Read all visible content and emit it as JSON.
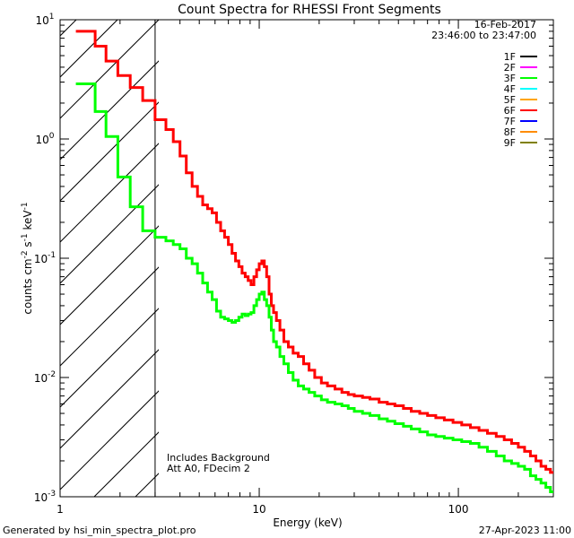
{
  "chart_data": {
    "type": "line",
    "title": "Count Spectra for RHESSI Front Segments",
    "xlabel": "Energy (keV)",
    "ylabel": "counts cm^-2 s^-1 keV^-1",
    "xscale": "log",
    "yscale": "log",
    "xlim": [
      1,
      300
    ],
    "ylim": [
      0.001,
      10
    ],
    "x_ticks": [
      {
        "value": 1,
        "label": "1"
      },
      {
        "value": 10,
        "label": "10"
      },
      {
        "value": 100,
        "label": "100"
      }
    ],
    "y_ticks": [
      {
        "value": 10,
        "mant": "10",
        "exp": "1"
      },
      {
        "value": 1,
        "mant": "10",
        "exp": "0"
      },
      {
        "value": 0.1,
        "mant": "10",
        "exp": "-1"
      },
      {
        "value": 0.01,
        "mant": "10",
        "exp": "-2"
      },
      {
        "value": 0.001,
        "mant": "10",
        "exp": "-3"
      }
    ],
    "date": "16-Feb-2017",
    "time_range": "23:46:00 to 23:47:00",
    "legend": [
      {
        "name": "1F",
        "color": "#000000"
      },
      {
        "name": "2F",
        "color": "#ff00ff"
      },
      {
        "name": "3F",
        "color": "#00ff00"
      },
      {
        "name": "4F",
        "color": "#00ffff"
      },
      {
        "name": "5F",
        "color": "#ffa500"
      },
      {
        "name": "6F",
        "color": "#ff0000"
      },
      {
        "name": "7F",
        "color": "#0000ff"
      },
      {
        "name": "8F",
        "color": "#ff8c00"
      },
      {
        "name": "9F",
        "color": "#808000"
      }
    ],
    "hatched_region_x": [
      1,
      3
    ],
    "annotations": [
      "Includes Background",
      "Att A0, FDecim 2"
    ],
    "series": [
      {
        "name": "6F",
        "color": "#ff0000",
        "x": [
          1.2,
          1.35,
          1.5,
          1.7,
          1.95,
          2.25,
          2.6,
          3.0,
          3.4,
          3.7,
          4.0,
          4.3,
          4.6,
          4.9,
          5.2,
          5.5,
          5.8,
          6.1,
          6.4,
          6.7,
          7.0,
          7.3,
          7.6,
          7.9,
          8.2,
          8.5,
          8.8,
          9.1,
          9.4,
          9.7,
          10.0,
          10.3,
          10.6,
          10.9,
          11.2,
          11.5,
          11.8,
          12.2,
          12.7,
          13.3,
          14.0,
          14.8,
          15.7,
          16.7,
          17.8,
          19.0,
          20.5,
          22.0,
          24.0,
          26.0,
          28.0,
          30.0,
          33.0,
          36.0,
          40.0,
          44.0,
          48.0,
          53.0,
          58.0,
          64.0,
          70.0,
          77.0,
          85.0,
          94.0,
          104.0,
          115.0,
          127.0,
          140.0,
          155.0,
          170.0,
          185.0,
          200.0,
          215.0,
          230.0,
          245.0,
          260.0,
          275.0,
          290.0
        ],
        "y": [
          8.0,
          8.0,
          6.0,
          4.5,
          3.4,
          2.7,
          2.1,
          1.45,
          1.2,
          0.95,
          0.72,
          0.52,
          0.4,
          0.33,
          0.28,
          0.26,
          0.24,
          0.2,
          0.17,
          0.15,
          0.13,
          0.11,
          0.095,
          0.085,
          0.075,
          0.07,
          0.065,
          0.06,
          0.07,
          0.08,
          0.09,
          0.095,
          0.085,
          0.07,
          0.05,
          0.04,
          0.035,
          0.03,
          0.025,
          0.02,
          0.018,
          0.016,
          0.015,
          0.013,
          0.0115,
          0.01,
          0.009,
          0.0085,
          0.008,
          0.0075,
          0.0072,
          0.007,
          0.0068,
          0.0066,
          0.0062,
          0.006,
          0.0058,
          0.0055,
          0.0052,
          0.005,
          0.0048,
          0.0046,
          0.0044,
          0.0042,
          0.004,
          0.0038,
          0.0036,
          0.0034,
          0.0032,
          0.003,
          0.0028,
          0.0026,
          0.0024,
          0.0022,
          0.002,
          0.0018,
          0.0017,
          0.0016
        ]
      },
      {
        "name": "3F",
        "color": "#00ff00",
        "x": [
          1.2,
          1.35,
          1.5,
          1.7,
          1.95,
          2.25,
          2.6,
          3.0,
          3.4,
          3.7,
          4.0,
          4.3,
          4.6,
          4.9,
          5.2,
          5.5,
          5.8,
          6.1,
          6.4,
          6.7,
          7.0,
          7.3,
          7.6,
          7.9,
          8.2,
          8.5,
          8.8,
          9.1,
          9.4,
          9.7,
          10.0,
          10.3,
          10.6,
          10.9,
          11.2,
          11.5,
          11.8,
          12.2,
          12.7,
          13.3,
          14.0,
          14.8,
          15.7,
          16.7,
          17.8,
          19.0,
          20.5,
          22.0,
          24.0,
          26.0,
          28.0,
          30.0,
          33.0,
          36.0,
          40.0,
          44.0,
          48.0,
          53.0,
          58.0,
          64.0,
          70.0,
          77.0,
          85.0,
          94.0,
          104.0,
          115.0,
          127.0,
          140.0,
          155.0,
          170.0,
          185.0,
          200.0,
          215.0,
          230.0,
          245.0,
          260.0,
          275.0,
          290.0
        ],
        "y": [
          2.9,
          2.9,
          1.7,
          1.05,
          0.48,
          0.27,
          0.17,
          0.15,
          0.14,
          0.13,
          0.12,
          0.1,
          0.09,
          0.075,
          0.062,
          0.052,
          0.045,
          0.036,
          0.032,
          0.031,
          0.03,
          0.029,
          0.03,
          0.032,
          0.034,
          0.033,
          0.034,
          0.035,
          0.04,
          0.045,
          0.05,
          0.052,
          0.045,
          0.04,
          0.032,
          0.025,
          0.02,
          0.018,
          0.015,
          0.013,
          0.011,
          0.0095,
          0.0085,
          0.008,
          0.0075,
          0.007,
          0.0065,
          0.0062,
          0.006,
          0.0058,
          0.0055,
          0.0052,
          0.005,
          0.0048,
          0.0045,
          0.0043,
          0.0041,
          0.0039,
          0.0037,
          0.0035,
          0.0033,
          0.0032,
          0.0031,
          0.003,
          0.0029,
          0.0028,
          0.0026,
          0.0024,
          0.0022,
          0.002,
          0.0019,
          0.0018,
          0.0017,
          0.0015,
          0.0014,
          0.0013,
          0.0012,
          0.0011
        ]
      }
    ]
  },
  "footer": {
    "generated_by": "Generated by hsi_min_spectra_plot.pro",
    "timestamp": "27-Apr-2023 11:00"
  }
}
